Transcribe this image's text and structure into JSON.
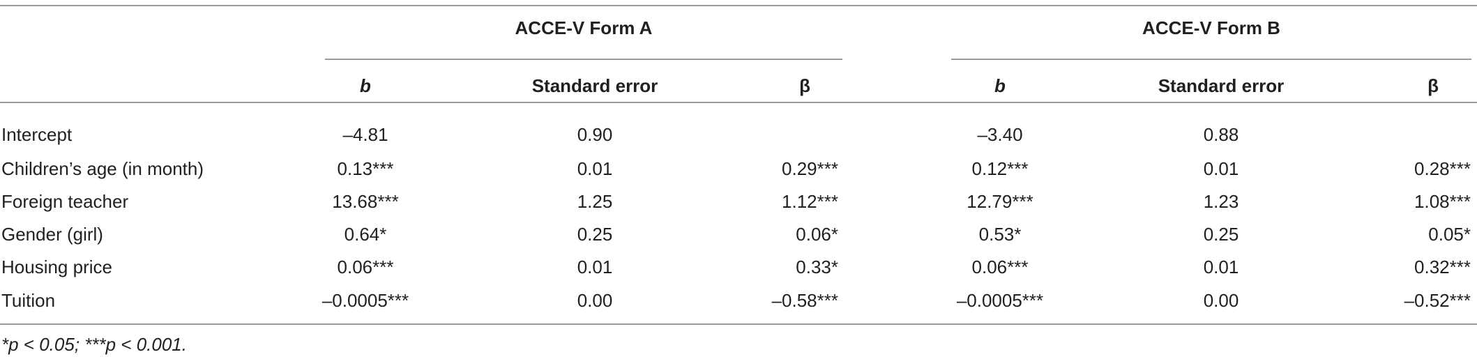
{
  "table": {
    "groups": [
      "ACCE-V Form A",
      "ACCE-V Form B"
    ],
    "columns": [
      "b",
      "Standard error",
      "β",
      "b",
      "Standard error",
      "β"
    ],
    "rows": [
      {
        "label": "Intercept",
        "cells": [
          "–4.81",
          "0.90",
          null,
          "–3.40",
          "0.88",
          null
        ]
      },
      {
        "label": "Children’s age (in month)",
        "cells": [
          "0.13***",
          "0.01",
          "0.29***",
          "0.12***",
          "0.01",
          "0.28***"
        ]
      },
      {
        "label": "Foreign teacher",
        "cells": [
          "13.68***",
          "1.25",
          "1.12***",
          "12.79***",
          "1.23",
          "1.08***"
        ]
      },
      {
        "label": "Gender (girl)",
        "cells": [
          "0.64*",
          "0.25",
          "0.06*",
          "0.53*",
          "0.25",
          "0.05*"
        ]
      },
      {
        "label": "Housing price",
        "cells": [
          "0.06***",
          "0.01",
          "0.33*",
          "0.06***",
          "0.01",
          "0.32***"
        ]
      },
      {
        "label": "Tuition",
        "cells": [
          "–0.0005***",
          "0.00",
          "–0.58***",
          "–0.0005***",
          "0.00",
          "–0.52***"
        ]
      }
    ]
  },
  "footnote": "*p < 0.05; ***p < 0.001."
}
